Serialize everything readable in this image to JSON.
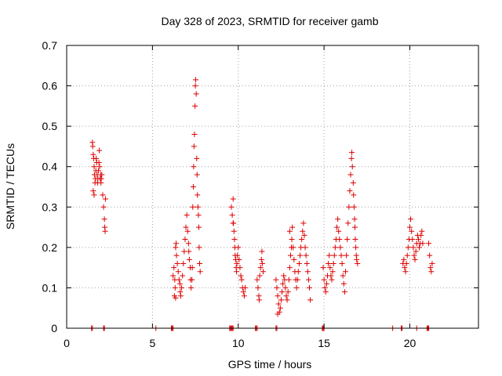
{
  "chart_data": {
    "type": "scatter",
    "title": "Day 328 of 2023, SRMTID for receiver gamb",
    "xlabel": "GPS time / hours",
    "ylabel": "SRMTID / TECUs",
    "xlim": [
      0,
      24
    ],
    "ylim": [
      0,
      0.7
    ],
    "xticks": [
      0,
      5,
      10,
      15,
      20
    ],
    "yticks": [
      0,
      0.1,
      0.2,
      0.3,
      0.4,
      0.5,
      0.6,
      0.7
    ],
    "grid": true,
    "marker": "+",
    "color": "#dd0000",
    "series": [
      {
        "name": "SRMTID",
        "points": [
          [
            1.5,
            0.46
          ],
          [
            1.52,
            0.45
          ],
          [
            1.55,
            0.43
          ],
          [
            1.58,
            0.42
          ],
          [
            1.6,
            0.4
          ],
          [
            1.62,
            0.38
          ],
          [
            1.65,
            0.36
          ],
          [
            1.68,
            0.37
          ],
          [
            1.7,
            0.39
          ],
          [
            1.72,
            0.42
          ],
          [
            1.75,
            0.41
          ],
          [
            1.78,
            0.38
          ],
          [
            1.8,
            0.36
          ],
          [
            1.82,
            0.37
          ],
          [
            1.85,
            0.39
          ],
          [
            1.88,
            0.41
          ],
          [
            1.9,
            0.44
          ],
          [
            1.92,
            0.4
          ],
          [
            1.95,
            0.37
          ],
          [
            1.98,
            0.38
          ],
          [
            2.0,
            0.36
          ],
          [
            2.02,
            0.37
          ],
          [
            2.05,
            0.38
          ],
          [
            2.1,
            0.33
          ],
          [
            2.15,
            0.3
          ],
          [
            2.2,
            0.27
          ],
          [
            2.22,
            0.25
          ],
          [
            2.24,
            0.24
          ],
          [
            2.26,
            0.32
          ],
          [
            1.55,
            0.34
          ],
          [
            1.6,
            0.33
          ],
          [
            6.2,
            0.13
          ],
          [
            6.25,
            0.15
          ],
          [
            6.3,
            0.12
          ],
          [
            6.32,
            0.1
          ],
          [
            6.35,
            0.2
          ],
          [
            6.38,
            0.21
          ],
          [
            6.4,
            0.18
          ],
          [
            6.45,
            0.16
          ],
          [
            6.5,
            0.14
          ],
          [
            6.55,
            0.12
          ],
          [
            6.6,
            0.11
          ],
          [
            6.62,
            0.09
          ],
          [
            6.65,
            0.08
          ],
          [
            6.7,
            0.1
          ],
          [
            6.75,
            0.13
          ],
          [
            6.8,
            0.16
          ],
          [
            6.85,
            0.19
          ],
          [
            6.9,
            0.22
          ],
          [
            6.95,
            0.25
          ],
          [
            7.0,
            0.28
          ],
          [
            7.05,
            0.24
          ],
          [
            7.1,
            0.21
          ],
          [
            7.12,
            0.19
          ],
          [
            7.15,
            0.17
          ],
          [
            7.2,
            0.15
          ],
          [
            7.22,
            0.12
          ],
          [
            7.25,
            0.1
          ],
          [
            7.3,
            0.12
          ],
          [
            7.32,
            0.15
          ],
          [
            7.35,
            0.3
          ],
          [
            7.38,
            0.35
          ],
          [
            7.4,
            0.4
          ],
          [
            7.42,
            0.45
          ],
          [
            7.45,
            0.48
          ],
          [
            7.48,
            0.55
          ],
          [
            7.5,
            0.6
          ],
          [
            7.52,
            0.615
          ],
          [
            7.55,
            0.58
          ],
          [
            7.58,
            0.42
          ],
          [
            7.6,
            0.38
          ],
          [
            7.62,
            0.33
          ],
          [
            7.65,
            0.3
          ],
          [
            7.68,
            0.28
          ],
          [
            7.7,
            0.25
          ],
          [
            7.72,
            0.2
          ],
          [
            7.75,
            0.16
          ],
          [
            7.78,
            0.14
          ],
          [
            6.28,
            0.08
          ],
          [
            6.35,
            0.075
          ],
          [
            9.6,
            0.3
          ],
          [
            9.65,
            0.28
          ],
          [
            9.7,
            0.32
          ],
          [
            9.72,
            0.26
          ],
          [
            9.75,
            0.24
          ],
          [
            9.78,
            0.22
          ],
          [
            9.8,
            0.2
          ],
          [
            9.82,
            0.18
          ],
          [
            9.85,
            0.17
          ],
          [
            9.88,
            0.15
          ],
          [
            9.9,
            0.14
          ],
          [
            9.92,
            0.16
          ],
          [
            9.95,
            0.18
          ],
          [
            10.0,
            0.2
          ],
          [
            10.05,
            0.17
          ],
          [
            10.1,
            0.15
          ],
          [
            10.15,
            0.13
          ],
          [
            10.2,
            0.12
          ],
          [
            10.25,
            0.1
          ],
          [
            10.3,
            0.09
          ],
          [
            10.35,
            0.08
          ],
          [
            10.4,
            0.1
          ],
          [
            9.7,
            0.26
          ],
          [
            11.1,
            0.12
          ],
          [
            11.15,
            0.1
          ],
          [
            11.2,
            0.08
          ],
          [
            11.22,
            0.07
          ],
          [
            11.25,
            0.13
          ],
          [
            11.3,
            0.15
          ],
          [
            11.35,
            0.17
          ],
          [
            11.38,
            0.19
          ],
          [
            11.4,
            0.16
          ],
          [
            11.45,
            0.14
          ],
          [
            12.2,
            0.12
          ],
          [
            12.25,
            0.1
          ],
          [
            12.3,
            0.08
          ],
          [
            12.35,
            0.06
          ],
          [
            12.4,
            0.04
          ],
          [
            12.45,
            0.05
          ],
          [
            12.5,
            0.07
          ],
          [
            12.55,
            0.09
          ],
          [
            12.6,
            0.11
          ],
          [
            12.65,
            0.13
          ],
          [
            12.7,
            0.12
          ],
          [
            12.75,
            0.1
          ],
          [
            12.8,
            0.08
          ],
          [
            12.85,
            0.07
          ],
          [
            12.9,
            0.09
          ],
          [
            12.95,
            0.12
          ],
          [
            13.0,
            0.15
          ],
          [
            13.05,
            0.18
          ],
          [
            13.1,
            0.2
          ],
          [
            13.12,
            0.22
          ],
          [
            13.15,
            0.25
          ],
          [
            13.2,
            0.2
          ],
          [
            13.25,
            0.17
          ],
          [
            13.3,
            0.14
          ],
          [
            13.35,
            0.12
          ],
          [
            13.4,
            0.1
          ],
          [
            13.45,
            0.12
          ],
          [
            13.5,
            0.14
          ],
          [
            13.55,
            0.16
          ],
          [
            13.6,
            0.18
          ],
          [
            13.65,
            0.2
          ],
          [
            13.7,
            0.22
          ],
          [
            13.75,
            0.24
          ],
          [
            13.8,
            0.26
          ],
          [
            13.85,
            0.23
          ],
          [
            13.9,
            0.2
          ],
          [
            13.95,
            0.18
          ],
          [
            14.0,
            0.16
          ],
          [
            14.05,
            0.14
          ],
          [
            14.1,
            0.12
          ],
          [
            14.15,
            0.1
          ],
          [
            14.2,
            0.07
          ],
          [
            13.0,
            0.24
          ],
          [
            12.3,
            0.035
          ],
          [
            14.95,
            0.15
          ],
          [
            15.0,
            0.12
          ],
          [
            15.05,
            0.1
          ],
          [
            15.1,
            0.09
          ],
          [
            15.15,
            0.11
          ],
          [
            15.2,
            0.13
          ],
          [
            15.25,
            0.16
          ],
          [
            15.3,
            0.18
          ],
          [
            15.35,
            0.15
          ],
          [
            15.4,
            0.13
          ],
          [
            15.45,
            0.12
          ],
          [
            15.5,
            0.14
          ],
          [
            15.55,
            0.16
          ],
          [
            15.6,
            0.18
          ],
          [
            15.65,
            0.2
          ],
          [
            15.7,
            0.22
          ],
          [
            15.75,
            0.25
          ],
          [
            15.8,
            0.27
          ],
          [
            15.85,
            0.24
          ],
          [
            15.9,
            0.22
          ],
          [
            15.95,
            0.2
          ],
          [
            16.0,
            0.18
          ],
          [
            16.05,
            0.16
          ],
          [
            16.1,
            0.13
          ],
          [
            16.15,
            0.11
          ],
          [
            16.2,
            0.09
          ],
          [
            16.25,
            0.14
          ],
          [
            16.3,
            0.18
          ],
          [
            16.35,
            0.22
          ],
          [
            16.4,
            0.26
          ],
          [
            16.45,
            0.3
          ],
          [
            16.5,
            0.34
          ],
          [
            16.55,
            0.38
          ],
          [
            16.6,
            0.42
          ],
          [
            16.62,
            0.435
          ],
          [
            16.65,
            0.4
          ],
          [
            16.7,
            0.36
          ],
          [
            16.72,
            0.33
          ],
          [
            16.75,
            0.3
          ],
          [
            16.78,
            0.27
          ],
          [
            16.8,
            0.25
          ],
          [
            16.82,
            0.22
          ],
          [
            16.85,
            0.2
          ],
          [
            16.88,
            0.18
          ],
          [
            16.9,
            0.17
          ],
          [
            16.95,
            0.16
          ],
          [
            19.6,
            0.16
          ],
          [
            19.65,
            0.17
          ],
          [
            19.7,
            0.15
          ],
          [
            19.75,
            0.14
          ],
          [
            19.8,
            0.16
          ],
          [
            19.85,
            0.18
          ],
          [
            19.9,
            0.2
          ],
          [
            19.95,
            0.22
          ],
          [
            20.0,
            0.25
          ],
          [
            20.05,
            0.27
          ],
          [
            20.1,
            0.24
          ],
          [
            20.15,
            0.22
          ],
          [
            20.2,
            0.2
          ],
          [
            20.25,
            0.18
          ],
          [
            20.3,
            0.17
          ],
          [
            20.35,
            0.19
          ],
          [
            20.4,
            0.21
          ],
          [
            20.45,
            0.23
          ],
          [
            20.5,
            0.22
          ],
          [
            20.55,
            0.2
          ],
          [
            20.6,
            0.21
          ],
          [
            20.65,
            0.23
          ],
          [
            20.7,
            0.24
          ],
          [
            20.75,
            0.21
          ],
          [
            21.1,
            0.21
          ],
          [
            21.15,
            0.18
          ],
          [
            21.2,
            0.15
          ],
          [
            21.25,
            0.14
          ],
          [
            21.3,
            0.16
          ]
        ]
      },
      {
        "name": "zero",
        "points": [
          [
            1.45,
            0
          ],
          [
            1.5,
            0
          ],
          [
            2.15,
            0
          ],
          [
            2.2,
            0
          ],
          [
            5.2,
            0
          ],
          [
            6.1,
            0
          ],
          [
            6.15,
            0
          ],
          [
            6.2,
            0
          ],
          [
            9.5,
            0
          ],
          [
            9.55,
            0
          ],
          [
            9.6,
            0
          ],
          [
            9.65,
            0
          ],
          [
            9.7,
            0
          ],
          [
            11.0,
            0
          ],
          [
            11.05,
            0
          ],
          [
            11.1,
            0
          ],
          [
            12.2,
            0
          ],
          [
            12.25,
            0
          ],
          [
            14.9,
            0
          ],
          [
            14.95,
            0
          ],
          [
            15.0,
            0
          ],
          [
            19.0,
            0
          ],
          [
            19.5,
            0
          ],
          [
            19.55,
            0
          ],
          [
            20.4,
            0
          ],
          [
            21.0,
            0
          ],
          [
            21.05,
            0
          ],
          [
            21.1,
            0
          ]
        ]
      }
    ]
  }
}
